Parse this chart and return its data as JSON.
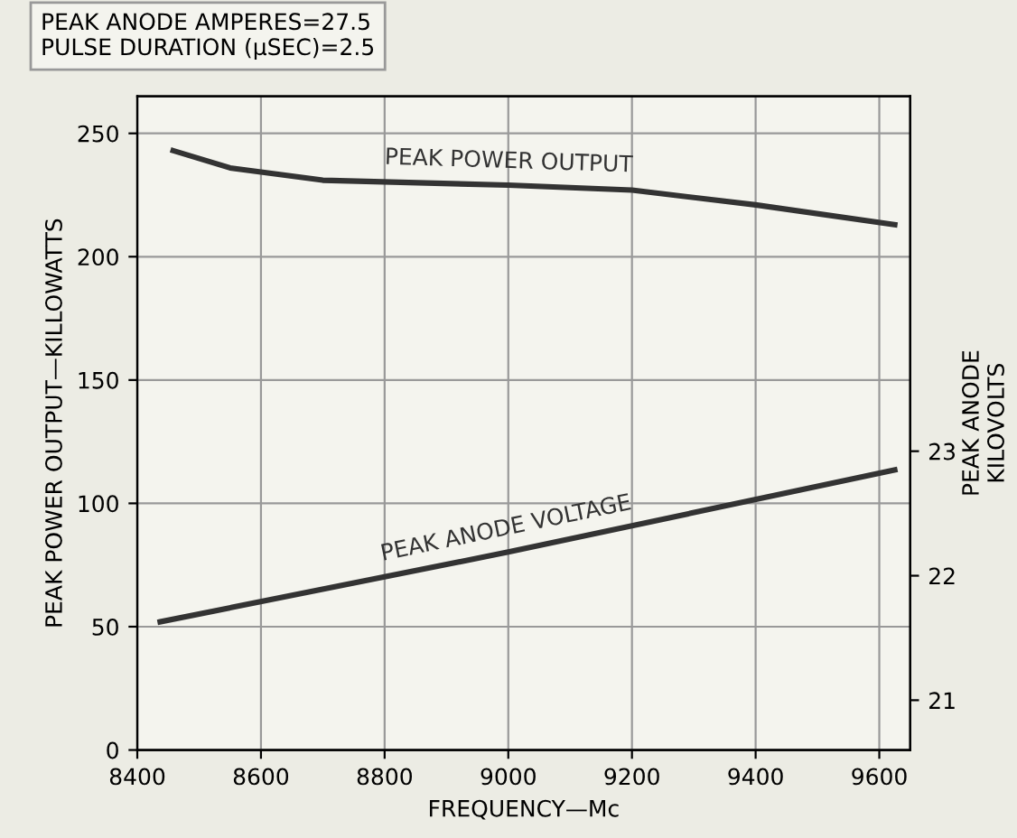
{
  "chart_data": {
    "type": "line",
    "xlabel": "FREQUENCY—Mc",
    "ylabel": "PEAK POWER OUTPUT—KILLOWATTS",
    "y2label": "PEAK ANODE\nKILOVOLTS",
    "annotations": [
      "PEAK ANODE AMPERES=27.5\nPULSE DURATION (μSEC)=2.5"
    ],
    "xlim": [
      8400,
      9650
    ],
    "xticks": [
      8400,
      8600,
      8800,
      9000,
      9200,
      9400,
      9600
    ],
    "ylim": [
      0,
      265
    ],
    "yticks": [
      0,
      50,
      100,
      150,
      200,
      250
    ],
    "y2lim": [
      20.6,
      25.85
    ],
    "y2ticks": [
      21,
      22,
      23
    ],
    "grid": true,
    "legend": false,
    "series": [
      {
        "name": "PEAK POWER OUTPUT",
        "color": "#333333",
        "x": [
          8458,
          8550,
          8700,
          9000,
          9200,
          9400,
          9625
        ],
        "values": [
          243,
          236,
          231,
          229,
          227,
          221,
          213
        ]
      },
      {
        "name": "PEAK ANODE VOLTAGE",
        "color": "#333333",
        "axis": "y2",
        "x": [
          8437,
          9000,
          9625
        ],
        "values": [
          21.63,
          22.19,
          22.85
        ]
      }
    ]
  }
}
